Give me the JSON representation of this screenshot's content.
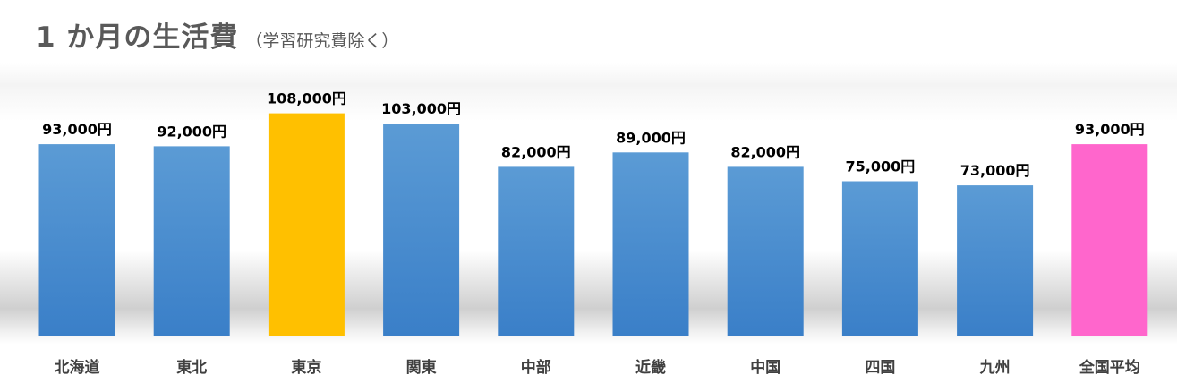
{
  "title": "1 か月の生活費",
  "subtitle": "（学習研究費除く）",
  "chart_data": {
    "type": "bar",
    "title": "1 か月の生活費",
    "subtitle": "（学習研究費除く）",
    "xlabel": "",
    "ylabel": "",
    "ylim": [
      0,
      120000
    ],
    "grid": false,
    "legend": "none",
    "categories": [
      "北海道",
      "東北",
      "東京",
      "関東",
      "中部",
      "近畿",
      "中国",
      "四国",
      "九州",
      "全国平均"
    ],
    "values": [
      93000,
      92000,
      108000,
      103000,
      82000,
      89000,
      82000,
      75000,
      73000,
      93000
    ],
    "value_labels": [
      "93,000円",
      "92,000円",
      "108,000円",
      "103,000円",
      "82,000円",
      "89,000円",
      "82,000円",
      "75,000円",
      "73,000円",
      "93,000円"
    ],
    "colors": {
      "default": "#4a8fd4",
      "highlight": "#ffc000",
      "average": "#ff66cc"
    },
    "bar_color_keys": [
      "default",
      "default",
      "highlight",
      "default",
      "default",
      "default",
      "default",
      "default",
      "default",
      "average"
    ]
  }
}
